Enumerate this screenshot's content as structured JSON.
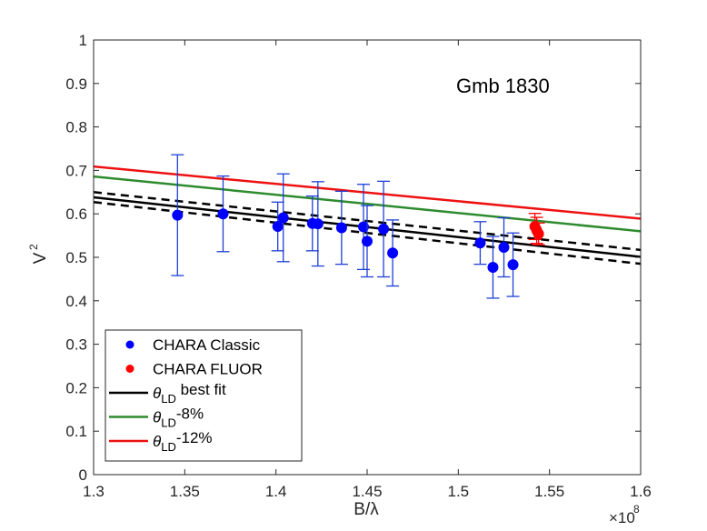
{
  "chart_data": {
    "type": "scatter",
    "annotation": "Gmb 1830",
    "xlabel": "B/λ",
    "ylabel": "V",
    "ylabel_sup": "2",
    "x_exponent_base": "×10",
    "x_exponent_power": "8",
    "xlim": [
      1.3,
      1.6
    ],
    "ylim": [
      0,
      1
    ],
    "x_ticks": [
      1.3,
      1.35,
      1.4,
      1.45,
      1.5,
      1.55,
      1.6
    ],
    "x_tick_labels": [
      "1.3",
      "1.35",
      "1.4",
      "1.45",
      "1.5",
      "1.55",
      "1.6"
    ],
    "y_ticks": [
      0,
      0.1,
      0.2,
      0.3,
      0.4,
      0.5,
      0.6,
      0.7,
      0.8,
      0.9,
      1
    ],
    "y_tick_labels": [
      "0",
      "0.1",
      "0.2",
      "0.3",
      "0.4",
      "0.5",
      "0.6",
      "0.7",
      "0.8",
      "0.9",
      "1"
    ],
    "colors": {
      "classic": "#0000ff",
      "classic_err": "#1f3fd6",
      "fluor": "#ff0000",
      "best_fit": "#000000",
      "minus8": "#2e8b2e",
      "minus12": "#ee1111"
    },
    "series": [
      {
        "name": "CHARA Classic",
        "kind": "points",
        "color_key": "classic",
        "points": [
          {
            "x": 1.346,
            "y": 0.597,
            "err": 0.139
          },
          {
            "x": 1.371,
            "y": 0.6,
            "err": 0.087
          },
          {
            "x": 1.401,
            "y": 0.571,
            "err": 0.056
          },
          {
            "x": 1.404,
            "y": 0.591,
            "err": 0.101
          },
          {
            "x": 1.42,
            "y": 0.578,
            "err": 0.063
          },
          {
            "x": 1.423,
            "y": 0.577,
            "err": 0.097
          },
          {
            "x": 1.436,
            "y": 0.568,
            "err": 0.084
          },
          {
            "x": 1.448,
            "y": 0.57,
            "err": 0.098
          },
          {
            "x": 1.45,
            "y": 0.537,
            "err": 0.082
          },
          {
            "x": 1.459,
            "y": 0.565,
            "err": 0.11
          },
          {
            "x": 1.464,
            "y": 0.51,
            "err": 0.076
          },
          {
            "x": 1.512,
            "y": 0.533,
            "err": 0.049
          },
          {
            "x": 1.519,
            "y": 0.477,
            "err": 0.071
          },
          {
            "x": 1.525,
            "y": 0.523,
            "err": 0.068
          },
          {
            "x": 1.53,
            "y": 0.483,
            "err": 0.073
          }
        ]
      },
      {
        "name": "CHARA FLUOR",
        "kind": "points",
        "color_key": "fluor",
        "points": [
          {
            "x": 1.542,
            "y": 0.571,
            "err": 0.03
          },
          {
            "x": 1.543,
            "y": 0.562,
            "err": 0.03
          },
          {
            "x": 1.544,
            "y": 0.554,
            "err": 0.025
          }
        ]
      },
      {
        "name": "best fit",
        "legend_symbol": "θ",
        "legend_sub": "LD",
        "legend_suffix": " best fit",
        "kind": "line",
        "color_key": "best_fit",
        "x": [
          1.3,
          1.6
        ],
        "y": [
          0.638,
          0.501
        ]
      },
      {
        "name": "best fit upper",
        "kind": "dashed",
        "color_key": "best_fit",
        "x": [
          1.3,
          1.6
        ],
        "y": [
          0.65,
          0.517
        ]
      },
      {
        "name": "best fit lower",
        "kind": "dashed",
        "color_key": "best_fit",
        "x": [
          1.3,
          1.6
        ],
        "y": [
          0.627,
          0.485
        ]
      },
      {
        "name": "-8%",
        "legend_symbol": "θ",
        "legend_sub": "LD",
        "legend_suffix": "-8%",
        "kind": "line",
        "color_key": "minus8",
        "x": [
          1.3,
          1.6
        ],
        "y": [
          0.686,
          0.56
        ]
      },
      {
        "name": "-12%",
        "legend_symbol": "θ",
        "legend_sub": "LD",
        "legend_suffix": "-12%",
        "kind": "line",
        "color_key": "minus12",
        "x": [
          1.3,
          1.6
        ],
        "y": [
          0.709,
          0.589
        ]
      }
    ],
    "legend": {
      "position": "bottom-left",
      "entries": [
        {
          "label": "CHARA Classic",
          "marker": "dot",
          "color_key": "classic"
        },
        {
          "label": "CHARA FLUOR",
          "marker": "dot",
          "color_key": "fluor"
        },
        {
          "symbol": "θ",
          "sub": "LD",
          "suffix": " best fit",
          "marker": "line",
          "color_key": "best_fit"
        },
        {
          "symbol": "θ",
          "sub": "LD",
          "suffix": "-8%",
          "marker": "line",
          "color_key": "minus8"
        },
        {
          "symbol": "θ",
          "sub": "LD",
          "suffix": "-12%",
          "marker": "line",
          "color_key": "minus12"
        }
      ]
    }
  }
}
